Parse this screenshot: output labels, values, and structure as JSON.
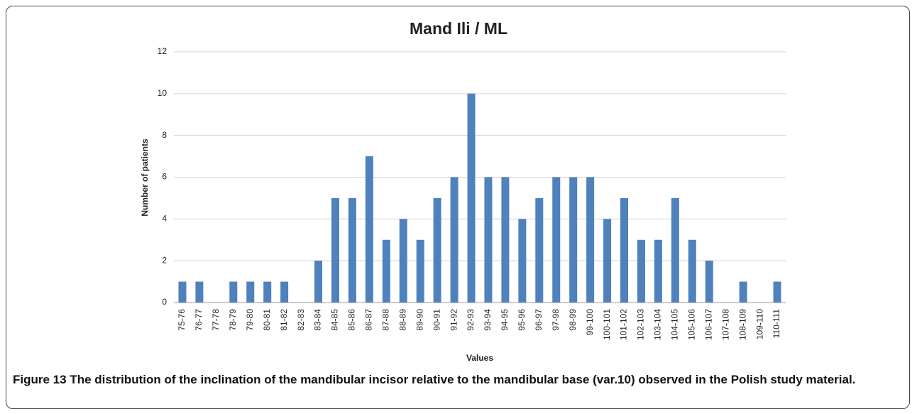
{
  "chart_data": {
    "type": "bar",
    "title": "Mand Ili / ML",
    "x_label": "Values",
    "y_label": "Number of patients",
    "categories": [
      "75-76",
      "76-77",
      "77-78",
      "78-79",
      "79-80",
      "80-81",
      "81-82",
      "82-83",
      "83-84",
      "84-85",
      "85-86",
      "86-87",
      "87-88",
      "88-89",
      "89-90",
      "90-91",
      "91-92",
      "92-93",
      "93-94",
      "94-95",
      "95-96",
      "96-97",
      "97-98",
      "98-99",
      "99-100",
      "100-101",
      "101-102",
      "102-103",
      "103-104",
      "104-105",
      "105-106",
      "106-107",
      "107-108",
      "108-109",
      "109-110",
      "110-111"
    ],
    "values": [
      1,
      1,
      0,
      1,
      1,
      1,
      1,
      0,
      2,
      5,
      5,
      7,
      3,
      4,
      3,
      5,
      6,
      10,
      6,
      6,
      4,
      5,
      6,
      6,
      6,
      4,
      5,
      3,
      3,
      5,
      3,
      2,
      0,
      1,
      0,
      1
    ],
    "color": "#4f81bd",
    "ylim": [
      0,
      12
    ],
    "yticks": [
      0,
      2,
      4,
      6,
      8,
      10,
      12
    ],
    "grid": true
  },
  "figure": {
    "label": "Figure 13",
    "text": "The distribution of the inclination of the mandibular incisor relative to the mandibular base (var.10) observed in the Polish study material."
  }
}
